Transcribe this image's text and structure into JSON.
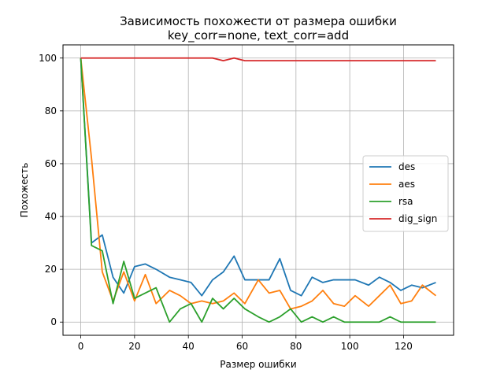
{
  "chart_data": {
    "type": "line",
    "title": "Зависимость похожести от размера ошибки",
    "subtitle": "key_corr=none, text_corr=add",
    "xlabel": "Размер ошибки",
    "ylabel": "Похожесть",
    "xlim": [
      -6.6,
      138.6
    ],
    "ylim": [
      -5,
      105
    ],
    "xticks": [
      0,
      20,
      40,
      60,
      80,
      100,
      120
    ],
    "yticks": [
      0,
      20,
      40,
      60,
      80,
      100
    ],
    "grid": true,
    "legend_position": "center-right",
    "x": [
      0,
      4,
      8,
      12,
      16,
      20,
      24,
      28,
      33,
      37,
      41,
      45,
      49,
      53,
      57,
      61,
      66,
      70,
      74,
      78,
      82,
      86,
      90,
      94,
      98,
      102,
      107,
      111,
      115,
      119,
      123,
      127,
      132
    ],
    "series": [
      {
        "name": "des",
        "color": "#1f77b4",
        "values": [
          100,
          30,
          33,
          17,
          11,
          21,
          22,
          20,
          17,
          16,
          15,
          10,
          16,
          19,
          25,
          16,
          16,
          16,
          24,
          12,
          10,
          17,
          15,
          16,
          16,
          16,
          14,
          17,
          15,
          12,
          14,
          13,
          15
        ]
      },
      {
        "name": "aes",
        "color": "#ff7f0e",
        "values": [
          100,
          62,
          19,
          8,
          19,
          8,
          18,
          7,
          12,
          10,
          7,
          8,
          7,
          8,
          11,
          7,
          16,
          11,
          12,
          5,
          6,
          8,
          12,
          7,
          6,
          10,
          6,
          10,
          14,
          7,
          8,
          14,
          10
        ]
      },
      {
        "name": "rsa",
        "color": "#2ca02c",
        "values": [
          100,
          29,
          27,
          7,
          23,
          9,
          11,
          13,
          0,
          5,
          7,
          0,
          9,
          5,
          9,
          5,
          2,
          0,
          2,
          5,
          0,
          2,
          0,
          2,
          0,
          0,
          0,
          0,
          2,
          0,
          0,
          0,
          0
        ]
      },
      {
        "name": "dig_sign",
        "color": "#d62728",
        "values": [
          100,
          100,
          100,
          100,
          100,
          100,
          100,
          100,
          100,
          100,
          100,
          100,
          100,
          99,
          100,
          99,
          99,
          99,
          99,
          99,
          99,
          99,
          99,
          99,
          99,
          99,
          99,
          99,
          99,
          99,
          99,
          99,
          99
        ]
      }
    ]
  }
}
